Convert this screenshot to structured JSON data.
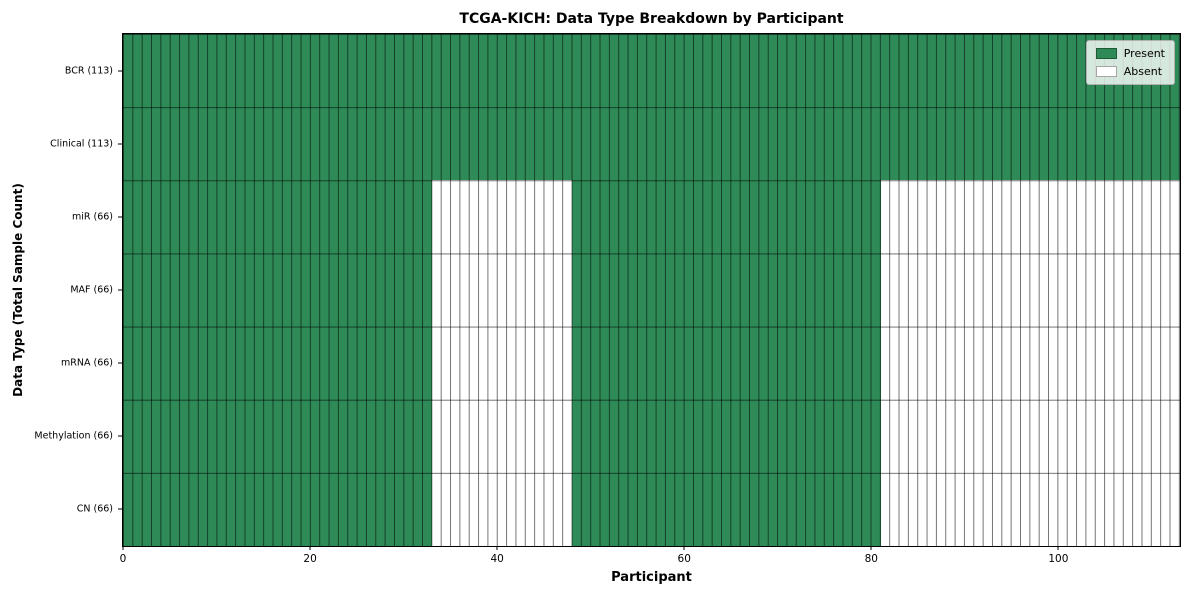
{
  "chart_data": {
    "type": "heatmap",
    "title": "TCGA-KICH: Data Type Breakdown by Participant",
    "xlabel": "Participant",
    "ylabel": "Data Type (Total Sample Count)",
    "xlim": [
      0,
      113
    ],
    "x_ticks": [
      0,
      20,
      40,
      60,
      80,
      100
    ],
    "n_participants": 113,
    "grid": true,
    "legend_position": "upper right",
    "legend": [
      {
        "label": "Present",
        "color": "#2e8b57"
      },
      {
        "label": "Absent",
        "color": "#ffffff"
      }
    ],
    "rows": [
      {
        "label": "BCR (113)",
        "data_type": "BCR",
        "total_sample_count": 113,
        "present_ranges": [
          [
            0,
            113
          ]
        ]
      },
      {
        "label": "Clinical (113)",
        "data_type": "Clinical",
        "total_sample_count": 113,
        "present_ranges": [
          [
            0,
            113
          ]
        ]
      },
      {
        "label": "miR (66)",
        "data_type": "miR",
        "total_sample_count": 66,
        "present_ranges": [
          [
            0,
            33
          ],
          [
            48,
            81
          ]
        ]
      },
      {
        "label": "MAF (66)",
        "data_type": "MAF",
        "total_sample_count": 66,
        "present_ranges": [
          [
            0,
            33
          ],
          [
            48,
            81
          ]
        ]
      },
      {
        "label": "mRNA (66)",
        "data_type": "mRNA",
        "total_sample_count": 66,
        "present_ranges": [
          [
            0,
            33
          ],
          [
            48,
            81
          ]
        ]
      },
      {
        "label": "Methylation (66)",
        "data_type": "Methylation",
        "total_sample_count": 66,
        "present_ranges": [
          [
            0,
            33
          ],
          [
            48,
            81
          ]
        ]
      },
      {
        "label": "CN (66)",
        "data_type": "CN",
        "total_sample_count": 66,
        "present_ranges": [
          [
            0,
            33
          ],
          [
            48,
            81
          ]
        ]
      }
    ],
    "colors": {
      "present": "#2e8b57",
      "absent": "#ffffff",
      "cell_edge": "rgba(0,0,0,0.55)",
      "spine": "#000000",
      "background": "#ffffff"
    }
  }
}
